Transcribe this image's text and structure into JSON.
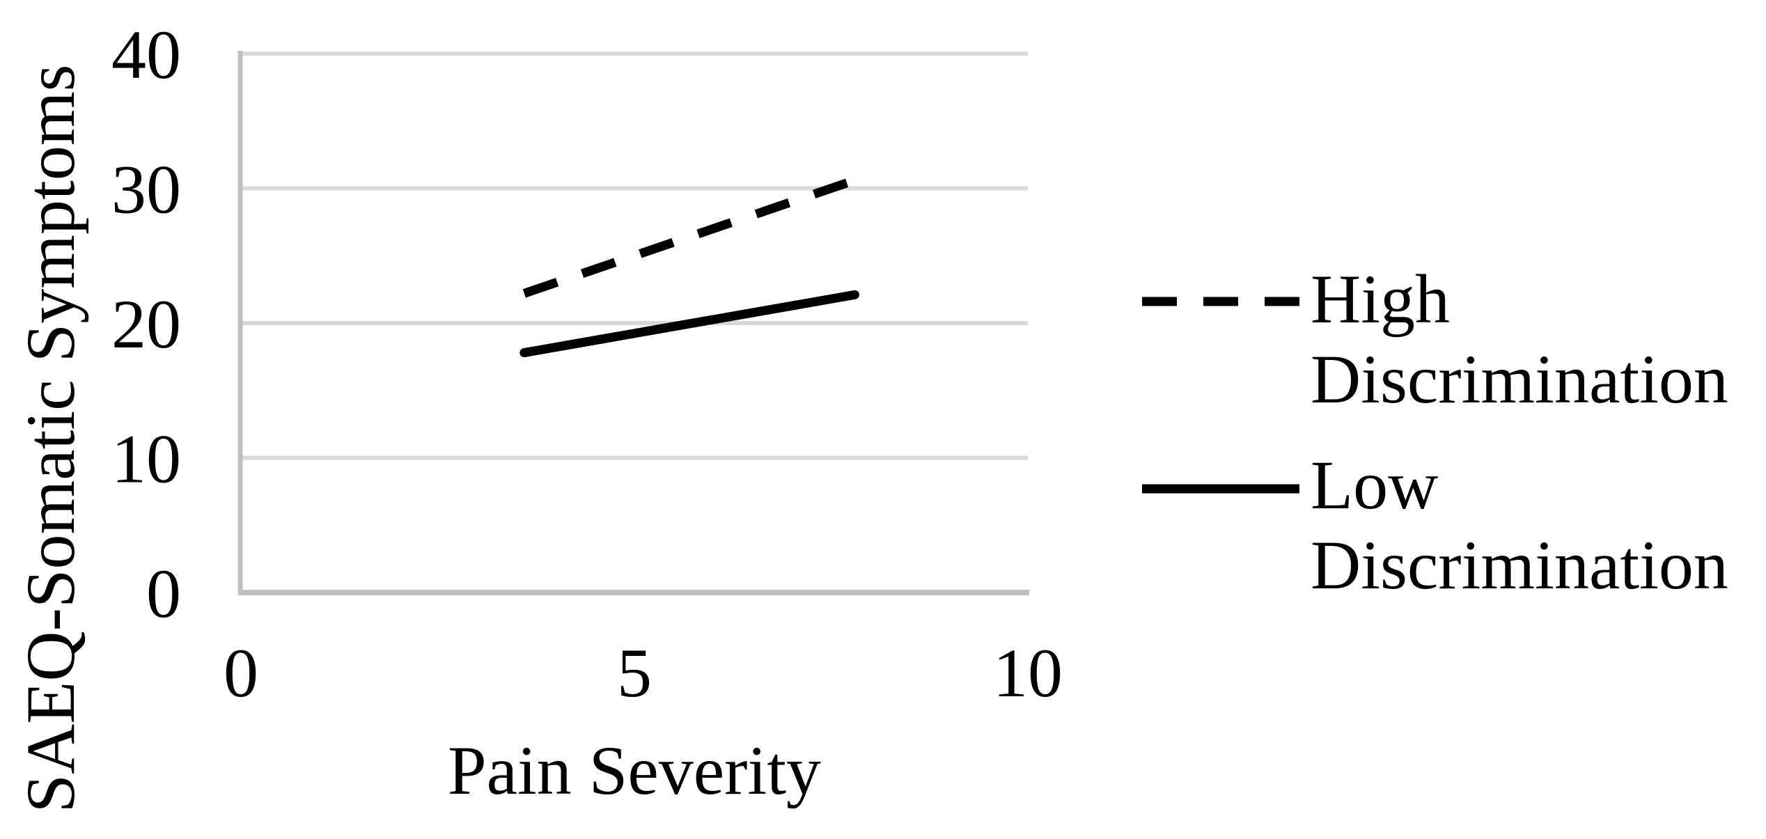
{
  "figure": {
    "background_color": "#ffffff",
    "text_color": "#000000"
  },
  "chart_data": {
    "type": "line",
    "title": "",
    "xlabel": "Pain Severity",
    "ylabel": "SAEQ-Somatic Symptoms",
    "xlim": [
      0,
      10
    ],
    "ylim": [
      0,
      40
    ],
    "xticks": [
      0,
      5,
      10
    ],
    "yticks": [
      0,
      10,
      20,
      30,
      40
    ],
    "grid": "horizontal",
    "legend_position": "right",
    "series": [
      {
        "name": "High Discrimination",
        "label_lines": [
          "High",
          "Discrimination"
        ],
        "line_style": "dashed",
        "color": "#000000",
        "points": [
          {
            "x": 3.6,
            "y": 22.2
          },
          {
            "x": 7.7,
            "y": 30.4
          }
        ]
      },
      {
        "name": "Low Discrimination",
        "label_lines": [
          "Low",
          "Discrimination"
        ],
        "line_style": "solid",
        "color": "#000000",
        "points": [
          {
            "x": 3.6,
            "y": 17.8
          },
          {
            "x": 7.8,
            "y": 22.1
          }
        ]
      }
    ],
    "colors": {
      "gridline": "#d9d9d9",
      "axis": "#bfbfbf",
      "series": "#000000"
    }
  }
}
